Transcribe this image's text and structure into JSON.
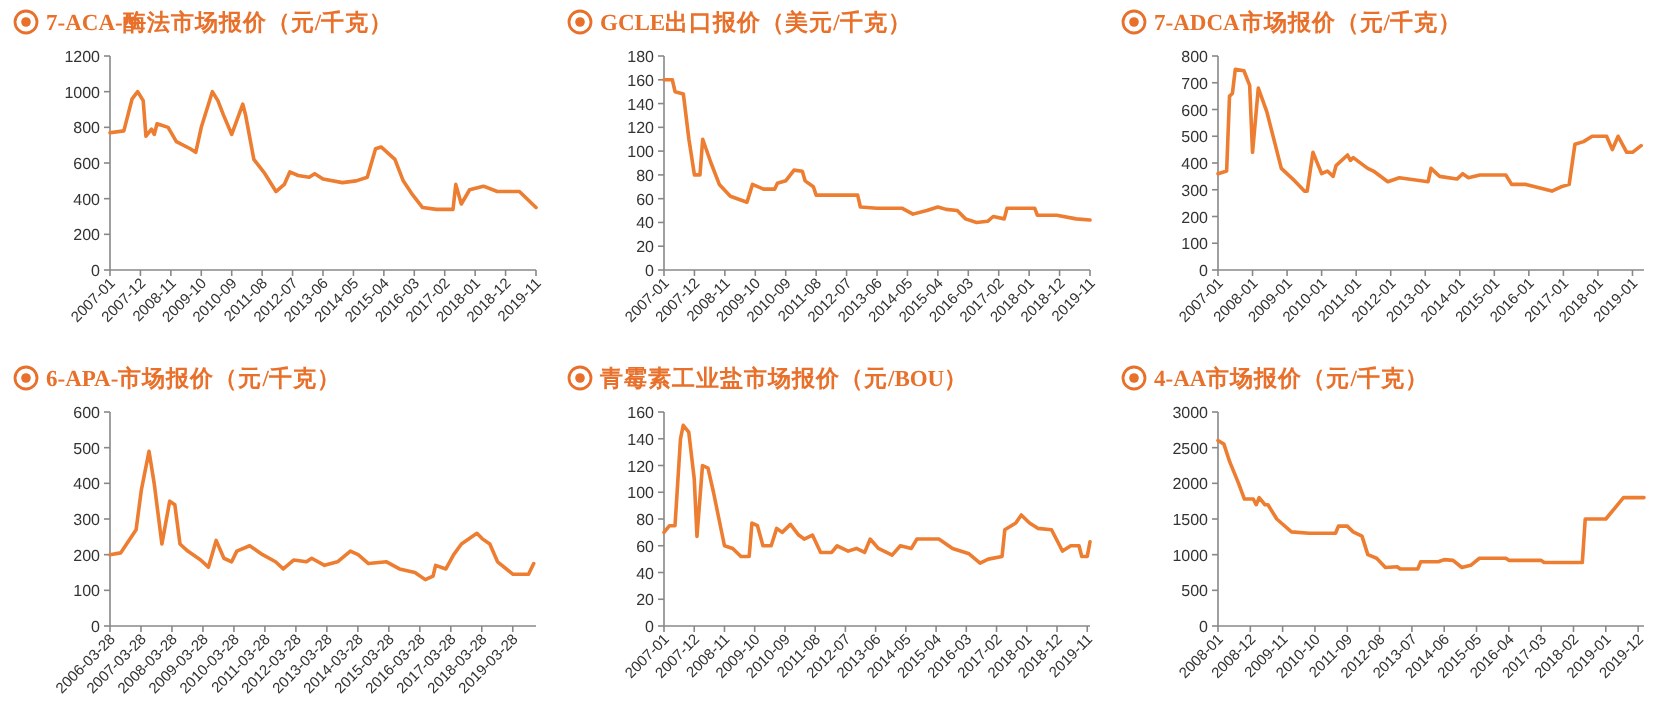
{
  "chart_data": [
    {
      "type": "line",
      "title": "7-ACA-酶法市场报价（元/千克）",
      "color": "#ed7d31",
      "xlim": [
        "2007-01",
        "2019-11"
      ],
      "ylim": [
        0,
        1200
      ],
      "yticks": [
        0,
        200,
        400,
        600,
        800,
        1000,
        1200
      ],
      "xticks": [
        "2007-01",
        "2007-12",
        "2008-11",
        "2009-10",
        "2010-09",
        "2011-08",
        "2012-07",
        "2013-06",
        "2014-05",
        "2015-04",
        "2016-03",
        "2017-02",
        "2018-01",
        "2018-12",
        "2019-11"
      ],
      "x": [
        "2007-01",
        "2007-06",
        "2007-09",
        "2007-11",
        "2008-01",
        "2008-02",
        "2008-04",
        "2008-05",
        "2008-06",
        "2008-10",
        "2009-01",
        "2009-06",
        "2009-08",
        "2009-10",
        "2010-02",
        "2010-04",
        "2010-06",
        "2010-09",
        "2011-01",
        "2011-02",
        "2011-05",
        "2011-09",
        "2012-01",
        "2012-04",
        "2012-06",
        "2012-09",
        "2013-01",
        "2013-03",
        "2013-06",
        "2014-01",
        "2014-06",
        "2014-10",
        "2015-01",
        "2015-03",
        "2015-08",
        "2015-11",
        "2016-02",
        "2016-06",
        "2016-11",
        "2017-05",
        "2017-06",
        "2017-08",
        "2017-11",
        "2018-04",
        "2018-09",
        "2019-05",
        "2019-11"
      ],
      "values": [
        770,
        780,
        960,
        1000,
        950,
        750,
        790,
        760,
        820,
        800,
        720,
        680,
        660,
        800,
        1000,
        950,
        870,
        760,
        930,
        870,
        620,
        540,
        440,
        480,
        550,
        530,
        520,
        540,
        510,
        490,
        500,
        520,
        680,
        690,
        620,
        500,
        430,
        350,
        340,
        340,
        480,
        370,
        450,
        470,
        440,
        440,
        350
      ]
    },
    {
      "type": "line",
      "title": "GCLE出口报价（美元/千克）",
      "color": "#ed7d31",
      "xlim": [
        "2007-01",
        "2019-11"
      ],
      "ylim": [
        0,
        180
      ],
      "yticks": [
        0,
        20,
        40,
        60,
        80,
        100,
        120,
        140,
        160,
        180
      ],
      "xticks": [
        "2007-01",
        "2007-12",
        "2008-11",
        "2009-10",
        "2010-09",
        "2011-08",
        "2012-07",
        "2013-06",
        "2014-05",
        "2015-04",
        "2016-03",
        "2017-02",
        "2018-01",
        "2018-12",
        "2019-11"
      ],
      "x": [
        "2007-01",
        "2007-04",
        "2007-05",
        "2007-08",
        "2007-10",
        "2007-12",
        "2008-02",
        "2008-03",
        "2008-06",
        "2008-09",
        "2009-01",
        "2009-07",
        "2009-09",
        "2010-01",
        "2010-05",
        "2010-06",
        "2010-09",
        "2010-12",
        "2011-03",
        "2011-04",
        "2011-07",
        "2011-08",
        "2012-11",
        "2012-12",
        "2013-06",
        "2014-03",
        "2014-07",
        "2014-12",
        "2015-04",
        "2015-07",
        "2015-11",
        "2016-02",
        "2016-06",
        "2016-10",
        "2016-12",
        "2017-04",
        "2017-05",
        "2018-03",
        "2018-04",
        "2018-11",
        "2019-06",
        "2019-11"
      ],
      "values": [
        160,
        160,
        150,
        148,
        110,
        80,
        80,
        110,
        90,
        72,
        62,
        57,
        72,
        68,
        68,
        73,
        75,
        84,
        83,
        75,
        70,
        63,
        63,
        53,
        52,
        52,
        47,
        50,
        53,
        51,
        50,
        43,
        40,
        41,
        45,
        43,
        52,
        52,
        46,
        46,
        43,
        42
      ]
    },
    {
      "type": "line",
      "title": "7-ADCA市场报价（元/千克）",
      "color": "#ed7d31",
      "xlim": [
        "2007-01",
        "2019-05"
      ],
      "ylim": [
        0,
        800
      ],
      "yticks": [
        0,
        100,
        200,
        300,
        400,
        500,
        600,
        700,
        800
      ],
      "xticks": [
        "2007-01",
        "2008-01",
        "2009-01",
        "2010-01",
        "2011-01",
        "2012-01",
        "2013-01",
        "2014-01",
        "2015-01",
        "2016-01",
        "2017-01",
        "2018-01",
        "2019-01"
      ],
      "x": [
        "2007-01",
        "2007-04",
        "2007-05",
        "2007-06",
        "2007-07",
        "2007-10",
        "2007-12",
        "2008-01",
        "2008-03",
        "2008-06",
        "2008-11",
        "2009-03",
        "2009-07",
        "2009-08",
        "2009-10",
        "2010-01",
        "2010-03",
        "2010-05",
        "2010-06",
        "2010-10",
        "2010-11",
        "2010-12",
        "2011-05",
        "2011-07",
        "2011-12",
        "2012-04",
        "2013-02",
        "2013-03",
        "2013-06",
        "2013-12",
        "2014-02",
        "2014-04",
        "2014-08",
        "2015-05",
        "2015-07",
        "2015-12",
        "2016-09",
        "2016-12",
        "2017-03",
        "2017-05",
        "2017-08",
        "2017-11",
        "2018-04",
        "2018-06",
        "2018-08",
        "2018-11",
        "2019-01",
        "2019-04"
      ],
      "values": [
        360,
        370,
        650,
        660,
        750,
        745,
        690,
        440,
        680,
        590,
        380,
        340,
        295,
        295,
        440,
        360,
        370,
        350,
        390,
        430,
        410,
        420,
        380,
        370,
        330,
        345,
        330,
        380,
        350,
        340,
        360,
        345,
        355,
        355,
        320,
        320,
        295,
        310,
        320,
        470,
        480,
        500,
        500,
        450,
        500,
        440,
        440,
        465
      ]
    },
    {
      "type": "line",
      "title": "6-APA-市场报价（元/千克）",
      "color": "#ed7d31",
      "xlim": [
        "2006-03-28",
        "2019-12-28"
      ],
      "ylim": [
        0,
        600
      ],
      "yticks": [
        0,
        100,
        200,
        300,
        400,
        500,
        600
      ],
      "xticks": [
        "2006-03-28",
        "2007-03-28",
        "2008-03-28",
        "2009-03-28",
        "2010-03-28",
        "2011-03-28",
        "2012-03-28",
        "2013-03-28",
        "2014-03-28",
        "2015-03-28",
        "2016-03-28",
        "2017-03-28",
        "2018-03-28",
        "2019-03-28"
      ],
      "x": [
        "2006-03-28",
        "2006-08",
        "2007-02",
        "2007-04",
        "2007-07",
        "2007-09",
        "2007-12",
        "2008-01",
        "2008-03",
        "2008-05",
        "2008-07",
        "2008-10",
        "2009-03",
        "2009-06",
        "2009-09",
        "2009-12",
        "2010-03",
        "2010-05",
        "2010-10",
        "2011-03",
        "2011-08",
        "2011-11",
        "2012-03",
        "2012-08",
        "2012-10",
        "2013-03",
        "2013-08",
        "2014-01",
        "2014-04",
        "2014-08",
        "2015-03",
        "2015-08",
        "2016-02",
        "2016-06",
        "2016-09",
        "2016-10",
        "2017-02",
        "2017-05",
        "2017-08",
        "2018-02",
        "2018-04",
        "2018-07",
        "2018-10",
        "2019-04",
        "2019-10",
        "2019-12"
      ],
      "values": [
        200,
        205,
        270,
        380,
        490,
        400,
        230,
        270,
        350,
        340,
        230,
        210,
        185,
        165,
        240,
        190,
        180,
        210,
        225,
        200,
        180,
        160,
        185,
        180,
        190,
        170,
        180,
        210,
        200,
        175,
        180,
        160,
        150,
        130,
        140,
        170,
        160,
        200,
        230,
        260,
        245,
        230,
        180,
        145,
        145,
        175
      ]
    },
    {
      "type": "line",
      "title": "青霉素工业盐市场报价（元/BOU）",
      "color": "#ed7d31",
      "xlim": [
        "2007-01",
        "2019-12"
      ],
      "ylim": [
        0,
        160
      ],
      "yticks": [
        0,
        20,
        40,
        60,
        80,
        100,
        120,
        140,
        160
      ],
      "xticks": [
        "2007-01",
        "2007-12",
        "2008-11",
        "2009-10",
        "2010-09",
        "2011-08",
        "2012-07",
        "2013-06",
        "2014-05",
        "2015-04",
        "2016-03",
        "2017-02",
        "2018-01",
        "2018-12",
        "2019-11"
      ],
      "x": [
        "2007-01",
        "2007-03",
        "2007-05",
        "2007-07",
        "2007-08",
        "2007-10",
        "2007-12",
        "2008-01",
        "2008-03",
        "2008-05",
        "2008-07",
        "2008-09",
        "2008-11",
        "2009-02",
        "2009-05",
        "2009-08",
        "2009-09",
        "2009-11",
        "2010-01",
        "2010-04",
        "2010-06",
        "2010-08",
        "2010-11",
        "2011-02",
        "2011-04",
        "2011-07",
        "2011-10",
        "2012-02",
        "2012-04",
        "2012-08",
        "2012-11",
        "2013-02",
        "2013-04",
        "2013-07",
        "2013-12",
        "2014-03",
        "2014-07",
        "2014-09",
        "2015-05",
        "2015-10",
        "2016-04",
        "2016-08",
        "2016-11",
        "2017-04",
        "2017-05",
        "2017-09",
        "2017-11",
        "2018-02",
        "2018-05",
        "2018-10",
        "2019-01",
        "2019-02",
        "2019-05",
        "2019-08",
        "2019-09",
        "2019-11",
        "2019-12"
      ],
      "values": [
        70,
        75,
        75,
        140,
        150,
        145,
        110,
        67,
        120,
        118,
        100,
        80,
        60,
        58,
        52,
        52,
        77,
        75,
        60,
        60,
        73,
        70,
        76,
        68,
        65,
        68,
        55,
        55,
        60,
        56,
        58,
        55,
        65,
        58,
        53,
        60,
        58,
        65,
        65,
        58,
        54,
        47,
        50,
        52,
        72,
        77,
        83,
        77,
        73,
        72,
        60,
        56,
        60,
        60,
        52,
        52,
        63
      ]
    },
    {
      "type": "line",
      "title": "4-AA市场报价（元/千克）",
      "color": "#ed7d31",
      "xlim": [
        "2008-01",
        "2020-02"
      ],
      "ylim": [
        0,
        3000
      ],
      "yticks": [
        0,
        500,
        1000,
        1500,
        2000,
        2500,
        3000
      ],
      "xticks": [
        "2008-01",
        "2008-12",
        "2009-11",
        "2010-10",
        "2011-09",
        "2012-08",
        "2013-07",
        "2014-06",
        "2015-05",
        "2016-04",
        "2017-03",
        "2018-02",
        "2019-01",
        "2019-12"
      ],
      "x": [
        "2008-01",
        "2008-03",
        "2008-05",
        "2008-08",
        "2008-10",
        "2009-01",
        "2009-02",
        "2009-03",
        "2009-05",
        "2009-06",
        "2009-09",
        "2010-02",
        "2010-08",
        "2011-05",
        "2011-06",
        "2011-09",
        "2011-11",
        "2012-02",
        "2012-04",
        "2012-07",
        "2012-10",
        "2013-02",
        "2013-03",
        "2013-09",
        "2013-10",
        "2014-04",
        "2014-06",
        "2014-09",
        "2014-12",
        "2015-03",
        "2015-06",
        "2016-03",
        "2016-04",
        "2017-03",
        "2017-04",
        "2018-05",
        "2018-06",
        "2019-01",
        "2019-04",
        "2019-07",
        "2020-02"
      ],
      "values": [
        2600,
        2550,
        2300,
        2000,
        1780,
        1780,
        1700,
        1800,
        1700,
        1700,
        1500,
        1320,
        1300,
        1300,
        1400,
        1400,
        1320,
        1260,
        1000,
        950,
        820,
        830,
        800,
        800,
        900,
        900,
        930,
        920,
        820,
        850,
        950,
        950,
        920,
        920,
        890,
        890,
        1500,
        1500,
        1650,
        1800,
        1800
      ]
    }
  ]
}
